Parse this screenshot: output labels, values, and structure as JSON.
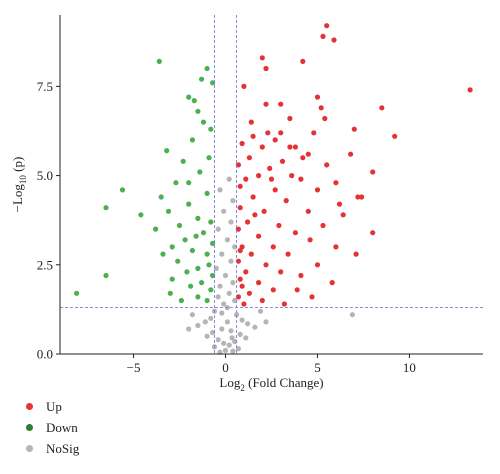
{
  "chart_data": {
    "type": "scatter",
    "title": "",
    "xlabel": {
      "base": "Log",
      "sub": "2",
      "rest": " (Fold Change)"
    },
    "ylabel": {
      "base": "−Log",
      "sub": "10",
      "rest": " (p)"
    },
    "xlim": [
      -9,
      14
    ],
    "ylim": [
      0,
      9.5
    ],
    "x_ticks": [
      -5,
      0,
      5,
      10
    ],
    "y_ticks": [
      0.0,
      2.5,
      5.0,
      7.5
    ],
    "x_tick_labels": [
      "−5",
      "0",
      "5",
      "10"
    ],
    "y_tick_labels": [
      "0.0",
      "2.5",
      "5.0",
      "7.5"
    ],
    "thresholds": {
      "fold_change_lines": [
        -0.6,
        0.6
      ],
      "p_line": 1.3,
      "line_color": "#7d7fe0"
    },
    "grid": false,
    "legend_position": "bottom-left",
    "series": [
      {
        "name": "Up",
        "color": "#e53232",
        "points": [
          [
            5.5,
            9.2
          ],
          [
            5.3,
            8.9
          ],
          [
            2.0,
            8.3
          ],
          [
            4.2,
            8.2
          ],
          [
            5.9,
            8.8
          ],
          [
            2.2,
            8.0
          ],
          [
            13.3,
            7.4
          ],
          [
            1.0,
            7.5
          ],
          [
            5.0,
            7.2
          ],
          [
            2.2,
            7.0
          ],
          [
            3.0,
            7.0
          ],
          [
            8.5,
            6.9
          ],
          [
            5.2,
            6.9
          ],
          [
            3.5,
            6.6
          ],
          [
            5.4,
            6.6
          ],
          [
            7.0,
            6.3
          ],
          [
            9.2,
            6.1
          ],
          [
            3.0,
            6.2
          ],
          [
            2.3,
            6.2
          ],
          [
            1.5,
            6.1
          ],
          [
            2.7,
            6.0
          ],
          [
            4.8,
            6.2
          ],
          [
            0.9,
            5.9
          ],
          [
            2.0,
            5.8
          ],
          [
            3.8,
            5.8
          ],
          [
            4.5,
            5.6
          ],
          [
            6.8,
            5.6
          ],
          [
            1.3,
            5.5
          ],
          [
            3.1,
            5.4
          ],
          [
            0.7,
            5.3
          ],
          [
            5.5,
            5.3
          ],
          [
            2.4,
            5.2
          ],
          [
            8.0,
            5.1
          ],
          [
            1.8,
            5.0
          ],
          [
            3.6,
            5.0
          ],
          [
            1.1,
            4.9
          ],
          [
            4.1,
            4.9
          ],
          [
            6.0,
            4.8
          ],
          [
            0.8,
            4.7
          ],
          [
            2.7,
            4.6
          ],
          [
            5.0,
            4.6
          ],
          [
            7.4,
            4.4
          ],
          [
            1.5,
            4.4
          ],
          [
            3.3,
            4.3
          ],
          [
            0.8,
            4.1
          ],
          [
            2.1,
            4.0
          ],
          [
            4.5,
            4.0
          ],
          [
            6.4,
            3.9
          ],
          [
            1.2,
            3.7
          ],
          [
            2.9,
            3.6
          ],
          [
            5.3,
            3.6
          ],
          [
            0.7,
            3.5
          ],
          [
            3.8,
            3.4
          ],
          [
            8.0,
            3.4
          ],
          [
            1.8,
            3.3
          ],
          [
            4.6,
            3.2
          ],
          [
            0.9,
            3.0
          ],
          [
            2.6,
            3.0
          ],
          [
            6.0,
            3.0
          ],
          [
            1.4,
            2.8
          ],
          [
            3.4,
            2.8
          ],
          [
            7.1,
            2.8
          ],
          [
            0.7,
            2.6
          ],
          [
            2.2,
            2.5
          ],
          [
            5.0,
            2.5
          ],
          [
            1.1,
            2.3
          ],
          [
            3.0,
            2.3
          ],
          [
            4.1,
            2.2
          ],
          [
            0.8,
            2.1
          ],
          [
            1.8,
            2.0
          ],
          [
            5.8,
            2.0
          ],
          [
            0.9,
            1.9
          ],
          [
            2.6,
            1.8
          ],
          [
            3.9,
            1.8
          ],
          [
            1.3,
            1.7
          ],
          [
            0.7,
            1.6
          ],
          [
            4.7,
            1.6
          ],
          [
            2.0,
            1.5
          ],
          [
            1.0,
            1.4
          ],
          [
            3.2,
            1.4
          ],
          [
            0.8,
            2.9
          ],
          [
            1.6,
            3.9
          ],
          [
            2.5,
            4.9
          ],
          [
            4.2,
            5.5
          ],
          [
            6.2,
            4.2
          ],
          [
            3.5,
            5.8
          ],
          [
            1.4,
            6.5
          ],
          [
            7.2,
            4.4
          ]
        ]
      },
      {
        "name": "Down",
        "color": "#4caf50",
        "points": [
          [
            -3.6,
            8.2
          ],
          [
            -1.0,
            8.0
          ],
          [
            -1.3,
            7.7
          ],
          [
            -0.7,
            7.6
          ],
          [
            -1.7,
            7.1
          ],
          [
            -2.0,
            7.2
          ],
          [
            -1.5,
            6.8
          ],
          [
            -1.2,
            6.5
          ],
          [
            -0.8,
            6.3
          ],
          [
            -1.8,
            6.0
          ],
          [
            -3.2,
            5.7
          ],
          [
            -2.3,
            5.4
          ],
          [
            -0.9,
            5.5
          ],
          [
            -1.4,
            5.1
          ],
          [
            -2.7,
            4.8
          ],
          [
            -5.6,
            4.6
          ],
          [
            -3.5,
            4.4
          ],
          [
            -1.0,
            4.5
          ],
          [
            -2.0,
            4.2
          ],
          [
            -6.5,
            4.1
          ],
          [
            -3.1,
            4.0
          ],
          [
            -4.6,
            3.9
          ],
          [
            -1.5,
            3.8
          ],
          [
            -0.8,
            3.7
          ],
          [
            -2.5,
            3.6
          ],
          [
            -3.8,
            3.5
          ],
          [
            -1.2,
            3.4
          ],
          [
            -2.2,
            3.2
          ],
          [
            -0.7,
            3.1
          ],
          [
            -2.9,
            3.0
          ],
          [
            -1.8,
            2.9
          ],
          [
            -1.0,
            2.8
          ],
          [
            -3.4,
            2.8
          ],
          [
            -2.6,
            2.6
          ],
          [
            -0.9,
            2.5
          ],
          [
            -1.5,
            2.4
          ],
          [
            -2.1,
            2.3
          ],
          [
            -0.7,
            2.2
          ],
          [
            -6.5,
            2.2
          ],
          [
            -2.9,
            2.1
          ],
          [
            -1.3,
            2.0
          ],
          [
            -1.9,
            1.9
          ],
          [
            -0.8,
            1.8
          ],
          [
            -3.0,
            1.7
          ],
          [
            -1.5,
            1.6
          ],
          [
            -8.1,
            1.7
          ],
          [
            -1.0,
            1.5
          ],
          [
            -2.4,
            1.5
          ],
          [
            -1.6,
            3.3
          ],
          [
            -2.0,
            4.8
          ]
        ]
      },
      {
        "name": "NoSig",
        "color": "#b5b5b5",
        "points": [
          [
            0.2,
            4.9
          ],
          [
            -0.3,
            4.6
          ],
          [
            0.4,
            4.3
          ],
          [
            -0.1,
            4.0
          ],
          [
            0.3,
            3.7
          ],
          [
            -0.4,
            3.5
          ],
          [
            0.1,
            3.2
          ],
          [
            0.5,
            3.0
          ],
          [
            -0.2,
            2.8
          ],
          [
            0.3,
            2.6
          ],
          [
            -0.5,
            2.4
          ],
          [
            0.0,
            2.2
          ],
          [
            0.4,
            2.0
          ],
          [
            -0.3,
            1.9
          ],
          [
            0.2,
            1.7
          ],
          [
            -0.4,
            1.6
          ],
          [
            0.5,
            1.5
          ],
          [
            -0.1,
            1.4
          ],
          [
            0.1,
            1.3
          ],
          [
            -0.6,
            1.2
          ],
          [
            0.6,
            1.1
          ],
          [
            -0.8,
            1.0
          ],
          [
            0.9,
            0.95
          ],
          [
            -1.1,
            0.9
          ],
          [
            1.2,
            0.85
          ],
          [
            -1.5,
            0.8
          ],
          [
            1.6,
            0.75
          ],
          [
            -0.2,
            0.7
          ],
          [
            0.3,
            0.65
          ],
          [
            -0.7,
            0.6
          ],
          [
            0.8,
            0.55
          ],
          [
            -1.0,
            0.5
          ],
          [
            1.1,
            0.45
          ],
          [
            -0.4,
            0.4
          ],
          [
            0.5,
            0.35
          ],
          [
            -0.1,
            0.3
          ],
          [
            0.2,
            0.25
          ],
          [
            -0.6,
            0.2
          ],
          [
            0.7,
            0.15
          ],
          [
            0.0,
            0.1
          ],
          [
            -0.3,
            0.05
          ],
          [
            0.4,
            0.08
          ],
          [
            1.9,
            1.2
          ],
          [
            -1.8,
            1.1
          ],
          [
            2.2,
            0.9
          ],
          [
            -2.0,
            0.7
          ],
          [
            6.9,
            1.1
          ],
          [
            0.1,
            0.9
          ],
          [
            -0.2,
            1.15
          ],
          [
            0.35,
            0.45
          ]
        ]
      }
    ]
  },
  "legend": [
    {
      "label": "Up",
      "color": "#e53232"
    },
    {
      "label": "Down",
      "color": "#2e7d32"
    },
    {
      "label": "NoSig",
      "color": "#b5b5b5"
    }
  ]
}
